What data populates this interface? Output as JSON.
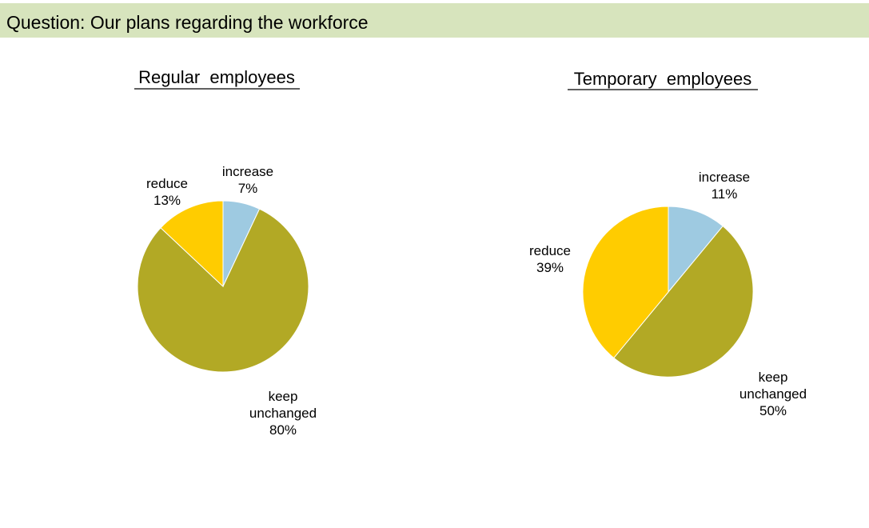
{
  "header": {
    "question": "Question: Our plans regarding the workforce",
    "background_color": "#d7e4bd"
  },
  "colors": {
    "increase": "#9ecae1",
    "keep_unchanged": "#b2a925",
    "reduce": "#ffcc00"
  },
  "chart_data": [
    {
      "type": "pie",
      "title": "Regular  employees",
      "slices": [
        {
          "key": "increase",
          "label_lines": [
            "increase"
          ],
          "value": 7,
          "value_text": "7%"
        },
        {
          "key": "keep_unchanged",
          "label_lines": [
            "keep",
            "unchanged"
          ],
          "value": 80,
          "value_text": "80%"
        },
        {
          "key": "reduce",
          "label_lines": [
            "reduce"
          ],
          "value": 13,
          "value_text": "13%"
        }
      ]
    },
    {
      "type": "pie",
      "title": "Temporary  employees",
      "slices": [
        {
          "key": "increase",
          "label_lines": [
            "increase"
          ],
          "value": 11,
          "value_text": "11%"
        },
        {
          "key": "keep_unchanged",
          "label_lines": [
            "keep",
            "unchanged"
          ],
          "value": 50,
          "value_text": "50%"
        },
        {
          "key": "reduce",
          "label_lines": [
            "reduce"
          ],
          "value": 39,
          "value_text": "39%"
        }
      ]
    }
  ]
}
